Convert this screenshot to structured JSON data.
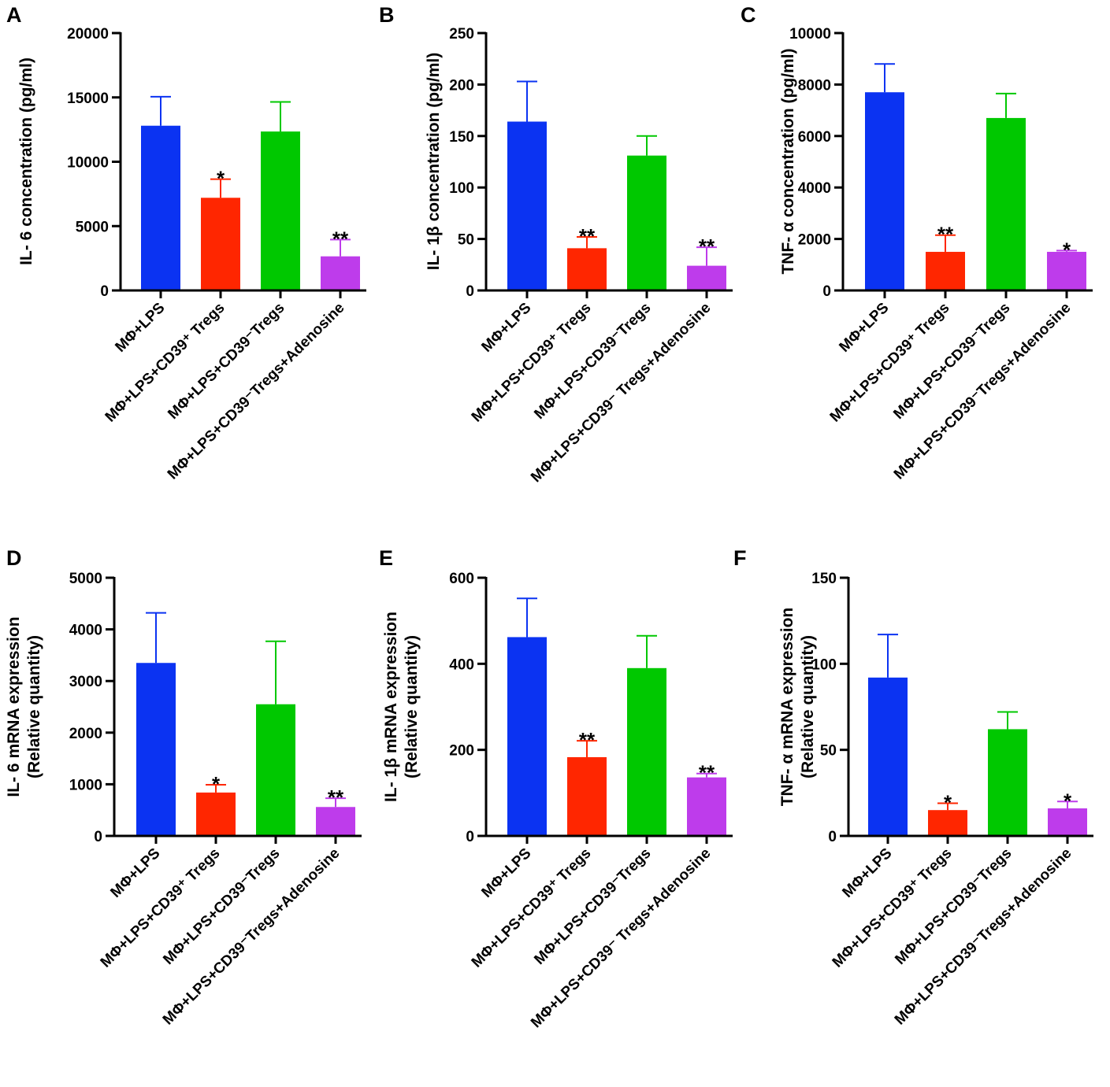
{
  "colors": {
    "blue": "#0b33f2",
    "red": "#ff2600",
    "green": "#00c800",
    "purple": "#be3ceb",
    "axis": "#000000"
  },
  "chart_data": [
    {
      "letter": "A",
      "type": "bar",
      "ylabel": "IL- 6 concentration  (pg/ml)",
      "ylim": [
        0,
        20000
      ],
      "yticks": [
        "0",
        "5000",
        "10000",
        "15000",
        "20000"
      ],
      "categories": [
        "MΦ+LPS",
        "MΦ+LPS+CD39⁺ Tregs",
        "MΦ+LPS+CD39⁻Tregs",
        "MΦ+LPS+CD39⁻Tregs+Adenosine"
      ],
      "values": [
        12800,
        7200,
        12350,
        2650
      ],
      "errors": [
        2250,
        1450,
        2300,
        1300
      ],
      "significance": [
        "",
        "*",
        "",
        "**"
      ]
    },
    {
      "letter": "B",
      "type": "bar",
      "ylabel": "IL- 1β concentration  (pg/ml)",
      "ylim": [
        0,
        250
      ],
      "yticks": [
        "0",
        "50",
        "100",
        "150",
        "200",
        "250"
      ],
      "categories": [
        "MΦ+LPS",
        "MΦ+LPS+CD39⁺ Tregs",
        "MΦ+LPS+CD39⁻Tregs",
        "MΦ+LPS+CD39⁻ Tregs+Adenosine"
      ],
      "values": [
        164,
        41,
        131,
        24
      ],
      "errors": [
        39,
        11,
        19,
        18
      ],
      "significance": [
        "",
        "**",
        "",
        "**"
      ]
    },
    {
      "letter": "C",
      "type": "bar",
      "ylabel": "TNF- α concentration (pg/ml)",
      "ylim": [
        0,
        10000
      ],
      "yticks": [
        "0",
        "2000",
        "4000",
        "6000",
        "8000",
        "10000"
      ],
      "categories": [
        "MΦ+LPS",
        "MΦ+LPS+CD39⁺ Tregs",
        "MΦ+LPS+CD39⁻Tregs",
        "MΦ+LPS+CD39⁻Tregs+Adenosine"
      ],
      "values": [
        7700,
        1500,
        6700,
        1500
      ],
      "errors": [
        1100,
        650,
        950,
        50
      ],
      "significance": [
        "",
        "**",
        "",
        "*"
      ]
    },
    {
      "letter": "D",
      "type": "bar",
      "ylabel": "IL- 6 mRNA expression",
      "ylabel2": "(Relative quantity)",
      "ylim": [
        0,
        5000
      ],
      "yticks": [
        "0",
        "1000",
        "2000",
        "3000",
        "4000",
        "5000"
      ],
      "categories": [
        "MΦ+LPS",
        "MΦ+LPS+CD39⁺ Tregs",
        "MΦ+LPS+CD39⁻Tregs",
        "MΦ+LPS+CD39⁻Tregs+Adenosine"
      ],
      "values": [
        3350,
        840,
        2550,
        560
      ],
      "errors": [
        970,
        150,
        1220,
        170
      ],
      "significance": [
        "",
        "*",
        "",
        "**"
      ]
    },
    {
      "letter": "E",
      "type": "bar",
      "ylabel": "IL- 1β mRNA expression",
      "ylabel2": "(Relative quantity)",
      "ylim": [
        0,
        600
      ],
      "yticks": [
        "0",
        "200",
        "400",
        "600"
      ],
      "categories": [
        "MΦ+LPS",
        "MΦ+LPS+CD39⁺ Tregs",
        "MΦ+LPS+CD39⁻Tregs",
        "MΦ+LPS+CD39⁻ Tregs+Adenosine"
      ],
      "values": [
        462,
        183,
        390,
        136
      ],
      "errors": [
        90,
        38,
        75,
        9
      ],
      "significance": [
        "",
        "**",
        "",
        "**"
      ]
    },
    {
      "letter": "F",
      "type": "bar",
      "ylabel": "TNF- α mRNA expression",
      "ylabel2": "(Relative quantity)",
      "ylim": [
        0,
        150
      ],
      "yticks": [
        "0",
        "50",
        "100",
        "150"
      ],
      "categories": [
        "MΦ+LPS",
        "MΦ+LPS+CD39⁺ Tregs",
        "MΦ+LPS+CD39⁻Tregs",
        "MΦ+LPS+CD39⁻Tregs+Adenosine"
      ],
      "values": [
        92,
        15,
        62,
        16
      ],
      "errors": [
        25,
        4,
        10,
        4
      ],
      "significance": [
        "",
        "*",
        "",
        "*"
      ]
    }
  ]
}
